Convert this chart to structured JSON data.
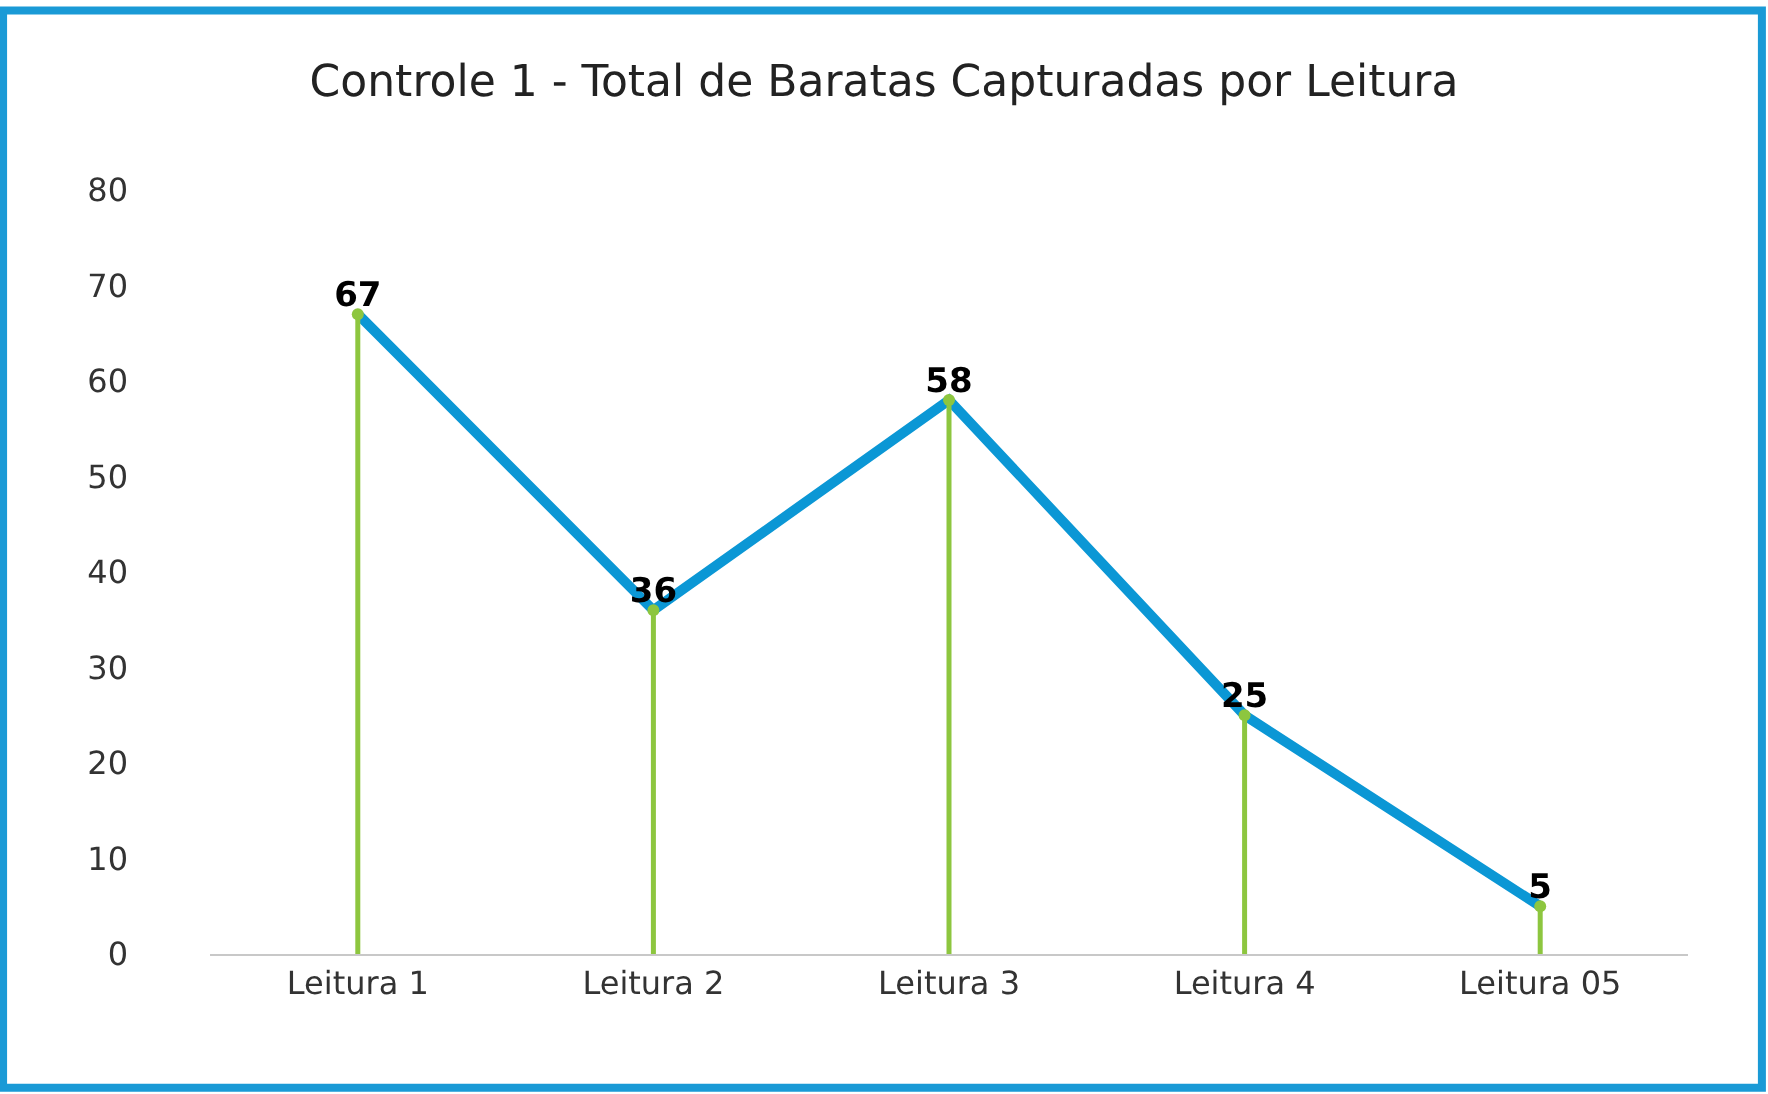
{
  "chart_data": {
    "type": "line",
    "title": "Controle 1 - Total de Baratas Capturadas por Leitura",
    "categories": [
      "Leitura 1",
      "Leitura 2",
      "Leitura 3",
      "Leitura 4",
      "Leitura 05"
    ],
    "series": [
      {
        "color": "#0b97d5",
        "values": [
          67,
          36,
          58,
          25,
          5
        ],
        "value_labels": [
          "67",
          "36",
          "58",
          "25",
          "5"
        ]
      },
      {
        "type": "lollipop",
        "color": "#8dc63f",
        "values": [
          67,
          36,
          58,
          25,
          5
        ]
      }
    ],
    "ylim": [
      0,
      80
    ],
    "yticks": [
      0,
      10,
      20,
      30,
      40,
      50,
      60,
      70,
      80
    ],
    "line_style": "solid"
  }
}
